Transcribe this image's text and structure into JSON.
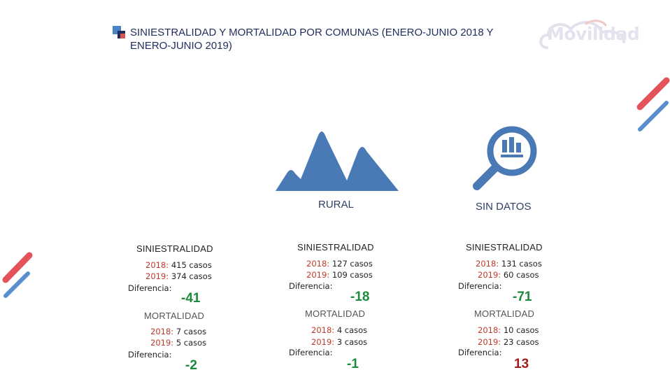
{
  "title": "SINIESTRALIDAD Y MORTALIDAD POR COMUNAS (ENERO-JUNIO 2018 Y ENERO-JUNIO 2019)",
  "logo": {
    "text": "Movilidad"
  },
  "icons": {
    "rural": "mountain-icon",
    "sin_datos": "magnifier-chart-icon"
  },
  "colors": {
    "accent_blue": "#4a7ab5",
    "stripe_red": "#e5535a",
    "positive": "#1e8a3c",
    "negative": "#a11d1d"
  },
  "categories": {
    "rural_label": "RURAL",
    "sin_datos_label": "SIN DATOS"
  },
  "labels": {
    "siniestralidad": "SINIESTRALIDAD",
    "mortalidad": "MORTALIDAD",
    "year_2018": "2018:",
    "year_2019": "2019:",
    "diferencia": "Diferencia:"
  },
  "columns": [
    {
      "siniestralidad": {
        "v2018": "415 casos",
        "v2019": "374 casos",
        "diff": "-41"
      },
      "mortalidad": {
        "v2018": "7 casos",
        "v2019": "5 casos",
        "diff": "-2"
      }
    },
    {
      "siniestralidad": {
        "v2018": "127 casos",
        "v2019": "109 casos",
        "diff": "-18"
      },
      "mortalidad": {
        "v2018": "4 casos",
        "v2019": "3 casos",
        "diff": "-1"
      }
    },
    {
      "siniestralidad": {
        "v2018": "131 casos",
        "v2019": "60 casos",
        "diff": "-71"
      },
      "mortalidad": {
        "v2018": "10 casos",
        "v2019": "23 casos",
        "diff": "13"
      }
    }
  ]
}
